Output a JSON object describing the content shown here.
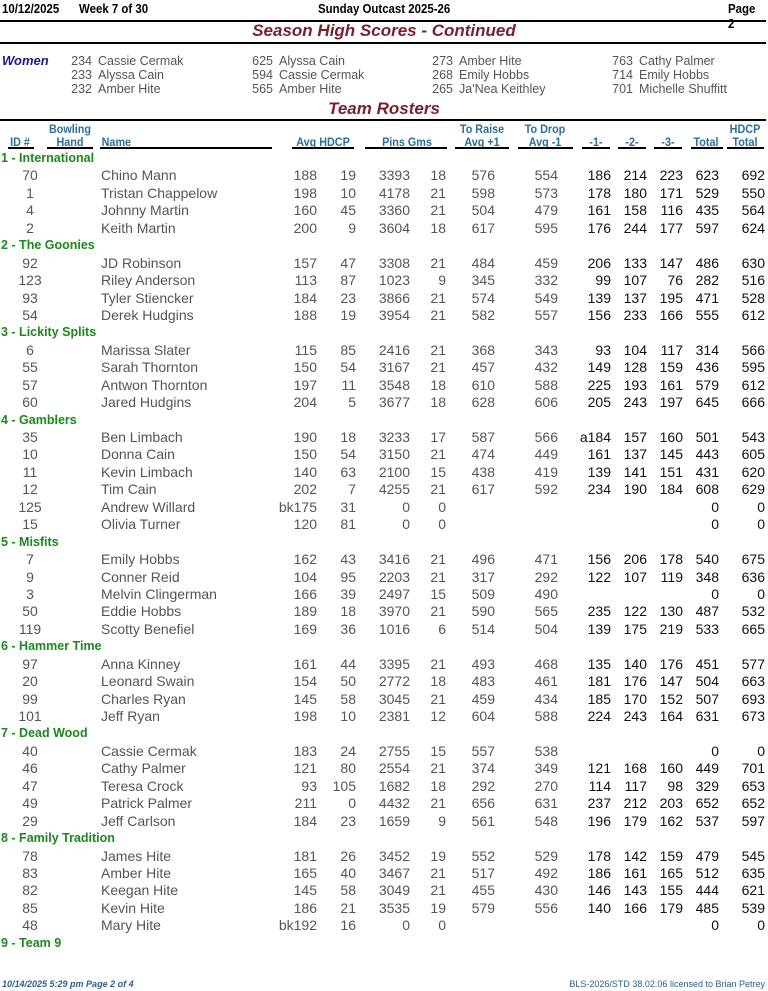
{
  "header": {
    "date": "10/12/2025",
    "week": "Week 7 of 30",
    "league": "Sunday Outcast 2025-26",
    "page": "Page 2"
  },
  "section_title": "Season High Scores - Continued",
  "high_scores": {
    "label": "Women",
    "columns": [
      [
        {
          "score": "234",
          "name": "Cassie Cermak"
        },
        {
          "score": "233",
          "name": "Alyssa Cain"
        },
        {
          "score": "232",
          "name": "Amber Hite"
        }
      ],
      [
        {
          "score": "625",
          "name": "Alyssa Cain"
        },
        {
          "score": "594",
          "name": "Cassie Cermak"
        },
        {
          "score": "565",
          "name": "Amber Hite"
        }
      ],
      [
        {
          "score": "273",
          "name": "Amber Hite"
        },
        {
          "score": "268",
          "name": "Emily Hobbs"
        },
        {
          "score": "265",
          "name": "Ja'Nea Keithley"
        }
      ],
      [
        {
          "score": "763",
          "name": "Cathy Palmer"
        },
        {
          "score": "714",
          "name": "Emily Hobbs"
        },
        {
          "score": "701",
          "name": "Michelle Shuffitt"
        }
      ]
    ]
  },
  "rosters_title": "Team Rosters",
  "columns": {
    "id": "ID #",
    "hand_1": "Bowling",
    "hand_2": "Hand",
    "name": "Name",
    "avg_hdcp": "Avg HDCP",
    "pins_gms": "Pins  Gms",
    "raise_1": "To Raise",
    "raise_2": "Avg +1",
    "drop_1": "To Drop",
    "drop_2": "Avg -1",
    "g1": "-1-",
    "g2": "-2-",
    "g3": "-3-",
    "total": "Total",
    "hdcp_total_1": "HDCP",
    "hdcp_total_2": "Total"
  },
  "teams": [
    {
      "name": "1 - International",
      "players": [
        [
          "70",
          "Chino Mann",
          "188",
          "19",
          "3393",
          "18",
          "576",
          "554",
          "186",
          "214",
          "223",
          "623",
          "692"
        ],
        [
          "1",
          "Tristan Chappelow",
          "198",
          "10",
          "4178",
          "21",
          "598",
          "573",
          "178",
          "180",
          "171",
          "529",
          "550"
        ],
        [
          "4",
          "Johnny Martin",
          "160",
          "45",
          "3360",
          "21",
          "504",
          "479",
          "161",
          "158",
          "116",
          "435",
          "564"
        ],
        [
          "2",
          "Keith Martin",
          "200",
          "9",
          "3604",
          "18",
          "617",
          "595",
          "176",
          "244",
          "177",
          "597",
          "624"
        ]
      ]
    },
    {
      "name": "2 - The Goonies",
      "players": [
        [
          "92",
          "JD Robinson",
          "157",
          "47",
          "3308",
          "21",
          "484",
          "459",
          "206",
          "133",
          "147",
          "486",
          "630"
        ],
        [
          "123",
          "Riley Anderson",
          "113",
          "87",
          "1023",
          "9",
          "345",
          "332",
          "99",
          "107",
          "76",
          "282",
          "516"
        ],
        [
          "93",
          "Tyler Stiencker",
          "184",
          "23",
          "3866",
          "21",
          "574",
          "549",
          "139",
          "137",
          "195",
          "471",
          "528"
        ],
        [
          "54",
          "Derek Hudgins",
          "188",
          "19",
          "3954",
          "21",
          "582",
          "557",
          "156",
          "233",
          "166",
          "555",
          "612"
        ]
      ]
    },
    {
      "name": "3 - Lickity Splits",
      "players": [
        [
          "6",
          "Marissa Slater",
          "115",
          "85",
          "2416",
          "21",
          "368",
          "343",
          "93",
          "104",
          "117",
          "314",
          "566"
        ],
        [
          "55",
          "Sarah Thornton",
          "150",
          "54",
          "3167",
          "21",
          "457",
          "432",
          "149",
          "128",
          "159",
          "436",
          "595"
        ],
        [
          "57",
          "Antwon Thornton",
          "197",
          "11",
          "3548",
          "18",
          "610",
          "588",
          "225",
          "193",
          "161",
          "579",
          "612"
        ],
        [
          "60",
          "Jared Hudgins",
          "204",
          "5",
          "3677",
          "18",
          "628",
          "606",
          "205",
          "243",
          "197",
          "645",
          "666"
        ]
      ]
    },
    {
      "name": "4 - Gamblers",
      "players": [
        [
          "35",
          "Ben Limbach",
          "190",
          "18",
          "3233",
          "17",
          "587",
          "566",
          "a184",
          "157",
          "160",
          "501",
          "543"
        ],
        [
          "10",
          "Donna Cain",
          "150",
          "54",
          "3150",
          "21",
          "474",
          "449",
          "161",
          "137",
          "145",
          "443",
          "605"
        ],
        [
          "11",
          "Kevin Limbach",
          "140",
          "63",
          "2100",
          "15",
          "438",
          "419",
          "139",
          "141",
          "151",
          "431",
          "620"
        ],
        [
          "12",
          "Tim Cain",
          "202",
          "7",
          "4255",
          "21",
          "617",
          "592",
          "234",
          "190",
          "184",
          "608",
          "629"
        ],
        [
          "125",
          "Andrew Willard",
          "bk175",
          "31",
          "0",
          "0",
          "",
          "",
          "",
          "",
          "",
          "0",
          "0"
        ],
        [
          "15",
          "Olivia Turner",
          "120",
          "81",
          "0",
          "0",
          "",
          "",
          "",
          "",
          "",
          "0",
          "0"
        ]
      ]
    },
    {
      "name": "5 - Misfits",
      "players": [
        [
          "7",
          "Emily Hobbs",
          "162",
          "43",
          "3416",
          "21",
          "496",
          "471",
          "156",
          "206",
          "178",
          "540",
          "675"
        ],
        [
          "9",
          "Conner Reid",
          "104",
          "95",
          "2203",
          "21",
          "317",
          "292",
          "122",
          "107",
          "119",
          "348",
          "636"
        ],
        [
          "3",
          "Melvin Clingerman",
          "166",
          "39",
          "2497",
          "15",
          "509",
          "490",
          "",
          "",
          "",
          "0",
          "0"
        ],
        [
          "50",
          "Eddie Hobbs",
          "189",
          "18",
          "3970",
          "21",
          "590",
          "565",
          "235",
          "122",
          "130",
          "487",
          "532"
        ],
        [
          "119",
          "Scotty Benefiel",
          "169",
          "36",
          "1016",
          "6",
          "514",
          "504",
          "139",
          "175",
          "219",
          "533",
          "665"
        ]
      ]
    },
    {
      "name": "6 - Hammer Time",
      "players": [
        [
          "97",
          "Anna Kinney",
          "161",
          "44",
          "3395",
          "21",
          "493",
          "468",
          "135",
          "140",
          "176",
          "451",
          "577"
        ],
        [
          "20",
          "Leonard Swain",
          "154",
          "50",
          "2772",
          "18",
          "483",
          "461",
          "181",
          "176",
          "147",
          "504",
          "663"
        ],
        [
          "99",
          "Charles Ryan",
          "145",
          "58",
          "3045",
          "21",
          "459",
          "434",
          "185",
          "170",
          "152",
          "507",
          "693"
        ],
        [
          "101",
          "Jeff Ryan",
          "198",
          "10",
          "2381",
          "12",
          "604",
          "588",
          "224",
          "243",
          "164",
          "631",
          "673"
        ]
      ]
    },
    {
      "name": "7 - Dead Wood",
      "players": [
        [
          "40",
          "Cassie Cermak",
          "183",
          "24",
          "2755",
          "15",
          "557",
          "538",
          "",
          "",
          "",
          "0",
          "0"
        ],
        [
          "46",
          "Cathy Palmer",
          "121",
          "80",
          "2554",
          "21",
          "374",
          "349",
          "121",
          "168",
          "160",
          "449",
          "701"
        ],
        [
          "47",
          "Teresa Crock",
          "93",
          "105",
          "1682",
          "18",
          "292",
          "270",
          "114",
          "117",
          "98",
          "329",
          "653"
        ],
        [
          "49",
          "Patrick Palmer",
          "211",
          "0",
          "4432",
          "21",
          "656",
          "631",
          "237",
          "212",
          "203",
          "652",
          "652"
        ],
        [
          "29",
          "Jeff Carlson",
          "184",
          "23",
          "1659",
          "9",
          "561",
          "548",
          "196",
          "179",
          "162",
          "537",
          "597"
        ]
      ]
    },
    {
      "name": "8 - Family Tradition",
      "players": [
        [
          "78",
          "James Hite",
          "181",
          "26",
          "3452",
          "19",
          "552",
          "529",
          "178",
          "142",
          "159",
          "479",
          "545"
        ],
        [
          "83",
          "Amber Hite",
          "165",
          "40",
          "3467",
          "21",
          "517",
          "492",
          "186",
          "161",
          "165",
          "512",
          "635"
        ],
        [
          "82",
          "Keegan Hite",
          "145",
          "58",
          "3049",
          "21",
          "455",
          "430",
          "146",
          "143",
          "155",
          "444",
          "621"
        ],
        [
          "85",
          "Kevin Hite",
          "186",
          "21",
          "3535",
          "19",
          "579",
          "556",
          "140",
          "166",
          "179",
          "485",
          "539"
        ],
        [
          "48",
          "Mary Hite",
          "bk192",
          "16",
          "0",
          "0",
          "",
          "",
          "",
          "",
          "",
          "0",
          "0"
        ]
      ]
    },
    {
      "name": "9 - Team 9",
      "players": []
    }
  ],
  "footer": {
    "printed": "10/14/2025  5:29 pm  Page 2 of 4",
    "license": "BLS-2026/STD 38.02.06 licensed to Brian Petrey"
  }
}
